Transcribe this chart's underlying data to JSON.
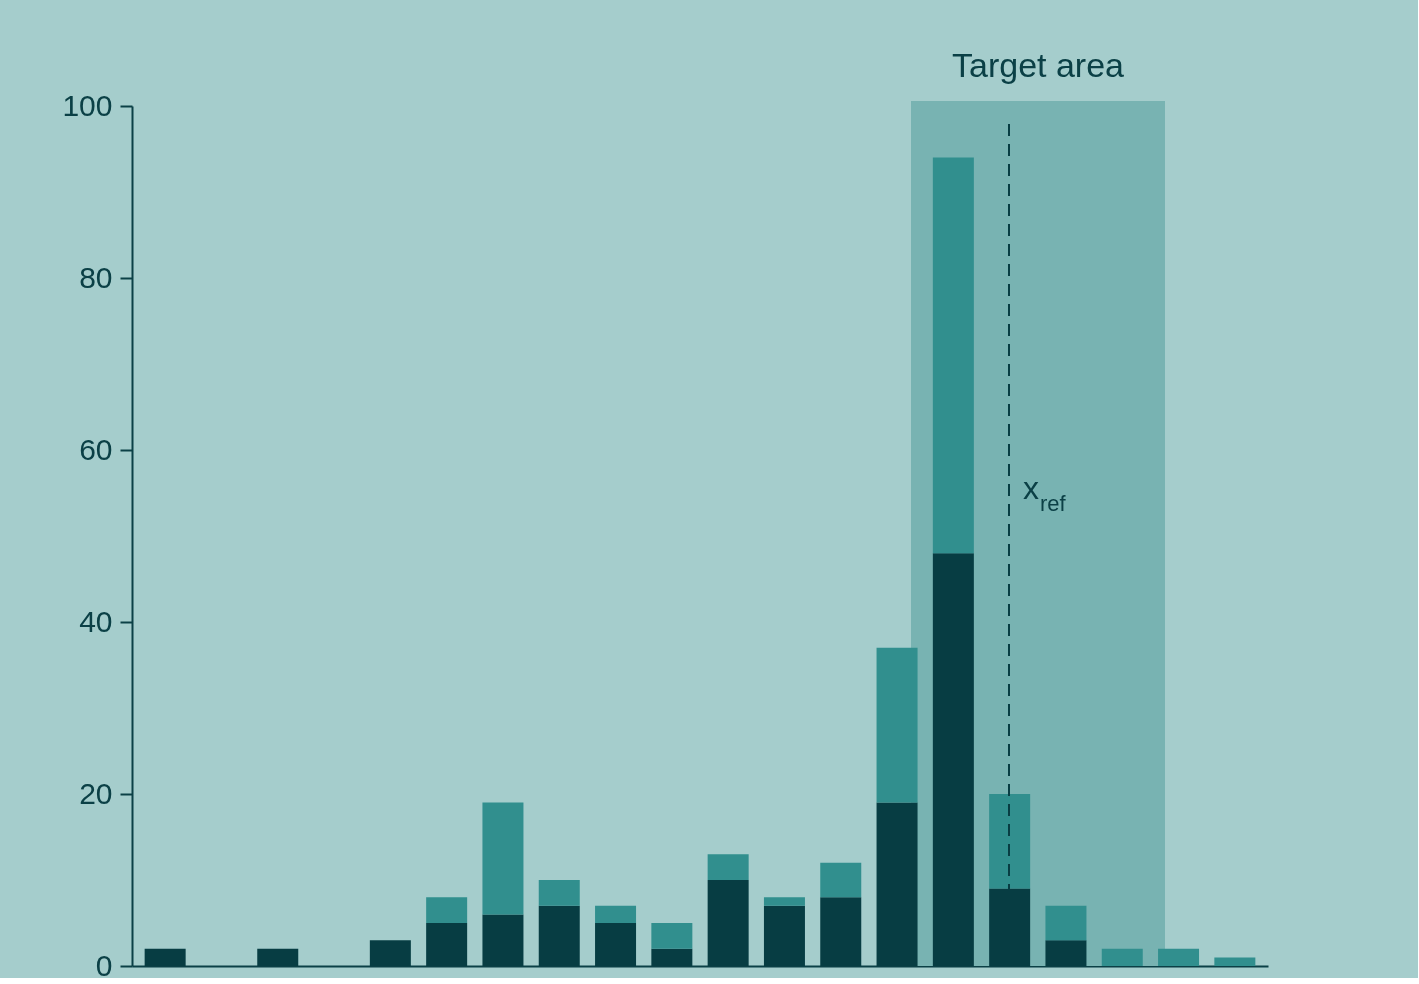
{
  "chart_data": {
    "type": "bar",
    "stacked": true,
    "categories": [
      null,
      null,
      null,
      null,
      null,
      null,
      null,
      null,
      null,
      null,
      null,
      null,
      null,
      null,
      null,
      null,
      null,
      null,
      null,
      null
    ],
    "series": [
      {
        "color": "#073d43",
        "values": [
          2,
          0,
          2,
          0,
          3,
          5,
          6,
          7,
          5,
          2,
          10,
          7,
          8,
          19,
          48,
          9,
          3,
          0,
          0,
          0
        ]
      },
      {
        "color": "#318f8e",
        "values": [
          0,
          0,
          0,
          0,
          0,
          3,
          13,
          3,
          2,
          3,
          3,
          1,
          4,
          18,
          46,
          11,
          4,
          2,
          2,
          1
        ]
      }
    ],
    "ylim": [
      0,
      100
    ],
    "yticks": [
      0,
      20,
      40,
      60,
      80,
      100
    ],
    "tick_labels": "y",
    "grid": false,
    "annotations": [
      "Target area",
      "x$_{ref}$"
    ]
  }
}
